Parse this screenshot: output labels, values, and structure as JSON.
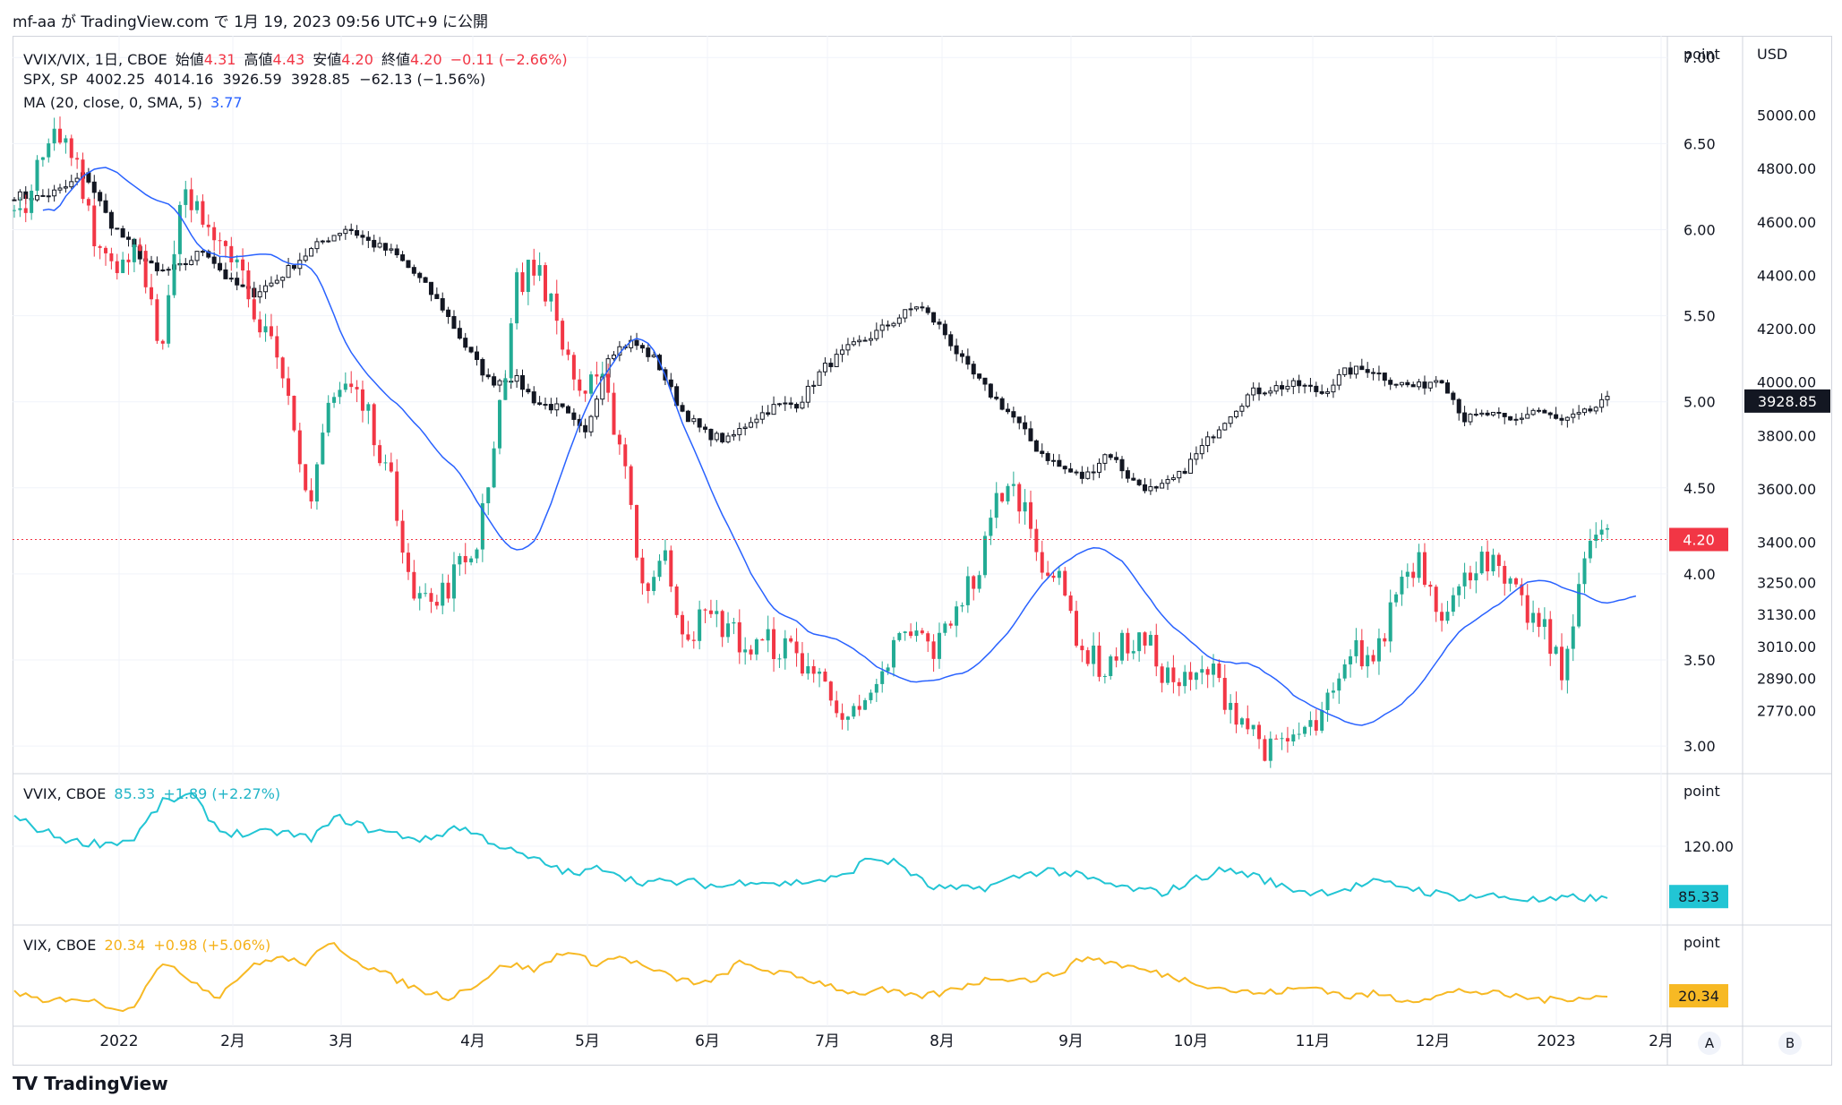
{
  "publisher_line": "mf-aa が TradingView.com で 1月 19, 2023 09:56 UTC+9 に公開",
  "brand": "TradingView",
  "brand_mark": "TV",
  "buttons": {
    "a": "A",
    "b": "B"
  },
  "legend": {
    "main": {
      "symbol": "VVIX/VIX, 1日, CBOE",
      "o_label": "始値",
      "o": "4.31",
      "h_label": "高値",
      "h": "4.43",
      "l_label": "安値",
      "l": "4.20",
      "c_label": "終値",
      "c": "4.20",
      "chg": "−0.11 (−2.66%)"
    },
    "spx": {
      "symbol": "SPX, SP",
      "values": "4002.25  4014.16  3926.59  3928.85  −62.13 (−1.56%)"
    },
    "ma": {
      "label": "MA (20, close, 0, SMA, 5)",
      "value": "3.77"
    },
    "vvix": {
      "label": "VVIX, CBOE",
      "value": "85.33",
      "chg": "+1.89 (+2.27%)"
    },
    "vix": {
      "label": "VIX, CBOE",
      "value": "20.34",
      "chg": "+0.98 (+5.06%)"
    }
  },
  "colors": {
    "up": "#22ab94",
    "down": "#f23645",
    "spx": "#131722",
    "ma": "#2962ff",
    "vvix": "#22c5d4",
    "vix": "#f7b924",
    "grid": "#f0f3fa",
    "axis_text": "#131722"
  },
  "chart_data": [
    {
      "type": "candlestick",
      "name": "VVIX/VIX",
      "axis_unit": "point",
      "ylim": [
        2.85,
        7.1
      ],
      "yticks": [
        "7.00",
        "6.50",
        "6.00",
        "5.50",
        "5.00",
        "4.50",
        "4.00",
        "3.50",
        "3.00"
      ],
      "last_value": "4.20",
      "x_months": [
        "2022",
        "2月",
        "3月",
        "4月",
        "5月",
        "6月",
        "7月",
        "8月",
        "9月",
        "10月",
        "11月",
        "12月",
        "2023",
        "2月"
      ],
      "x_start": "2021-12-07",
      "weekly_closes": [
        6.05,
        6.3,
        6.55,
        6.4,
        5.9,
        5.8,
        5.95,
        5.2,
        6.2,
        6.05,
        6.0,
        5.7,
        5.4,
        5.0,
        4.4,
        5.0,
        5.1,
        4.9,
        4.5,
        3.95,
        3.8,
        4.0,
        4.15,
        4.85,
        5.7,
        5.8,
        5.4,
        5.05,
        5.1,
        4.75,
        3.9,
        4.1,
        3.65,
        3.75,
        3.7,
        3.55,
        3.6,
        3.55,
        3.45,
        3.3,
        3.15,
        3.25,
        3.6,
        3.65,
        3.55,
        3.85,
        4.0,
        4.5,
        4.45,
        4.1,
        3.9,
        3.55,
        3.45,
        3.6,
        3.6,
        3.4,
        3.35,
        3.45,
        3.25,
        3.1,
        2.95,
        3.05,
        3.1,
        3.3,
        3.55,
        3.5,
        3.95,
        4.1,
        3.8,
        3.9,
        4.15,
        3.95,
        3.8,
        3.65,
        3.4,
        4.25,
        4.2
      ]
    },
    {
      "type": "line",
      "name": "MA (20, close, 0, SMA, 5)",
      "last_value": "3.77"
    },
    {
      "type": "candlestick",
      "name": "SPX",
      "axis_unit": "USD",
      "ylim": [
        2540,
        5280
      ],
      "yticks": [
        "5000.00",
        "4800.00",
        "4600.00",
        "4400.00",
        "4200.00",
        "4000.00",
        "3800.00",
        "3600.00",
        "3400.00",
        "3250.00",
        "3130.00",
        "3010.00",
        "2890.00",
        "2770.00"
      ],
      "last_value": "3928.85",
      "weekly_closes": [
        4700,
        4690,
        4720,
        4780,
        4600,
        4500,
        4410,
        4430,
        4500,
        4380,
        4330,
        4380,
        4460,
        4530,
        4580,
        4520,
        4480,
        4390,
        4280,
        4130,
        4000,
        4020,
        3920,
        3900,
        3800,
        4110,
        4150,
        4080,
        3900,
        3810,
        3780,
        3860,
        3910,
        3920,
        4050,
        4120,
        4170,
        4230,
        4290,
        4200,
        4060,
        3960,
        3870,
        3750,
        3680,
        3640,
        3740,
        3630,
        3590,
        3650,
        3760,
        3870,
        3960,
        3980,
        3990,
        3960,
        4040,
        4050,
        4000,
        3980,
        4020,
        3860,
        3880,
        3850,
        3900,
        3850,
        3880,
        3930
      ]
    },
    {
      "type": "line",
      "name": "VVIX",
      "axis_unit": "point",
      "yticks": [
        "120.00"
      ],
      "last_value": "85.33",
      "weekly_closes": [
        140,
        130,
        123,
        122,
        124,
        150,
        155,
        130,
        128,
        130,
        125,
        140,
        132,
        128,
        124,
        134,
        125,
        115,
        108,
        100,
        106,
        96,
        95,
        95,
        92,
        97,
        94,
        96,
        98,
        112,
        108,
        92,
        90,
        92,
        99,
        104,
        100,
        94,
        90,
        88,
        97,
        104,
        100,
        92,
        88,
        90,
        95,
        93,
        88,
        85,
        86,
        84,
        82,
        85,
        83
      ]
    },
    {
      "type": "line",
      "name": "VIX",
      "axis_unit": "point",
      "last_value": "20.34",
      "weekly_closes": [
        22,
        18,
        20,
        18,
        16,
        30,
        26,
        20,
        28,
        32,
        30,
        36,
        30,
        26,
        22,
        20,
        24,
        30,
        28,
        34,
        30,
        32,
        28,
        25,
        24,
        30,
        28,
        26,
        24,
        21,
        22,
        20,
        21,
        24,
        26,
        25,
        27,
        32,
        30,
        28,
        26,
        24,
        22,
        21,
        22,
        23,
        20,
        21,
        19,
        20,
        22,
        21,
        20,
        19,
        20,
        20
      ]
    }
  ]
}
